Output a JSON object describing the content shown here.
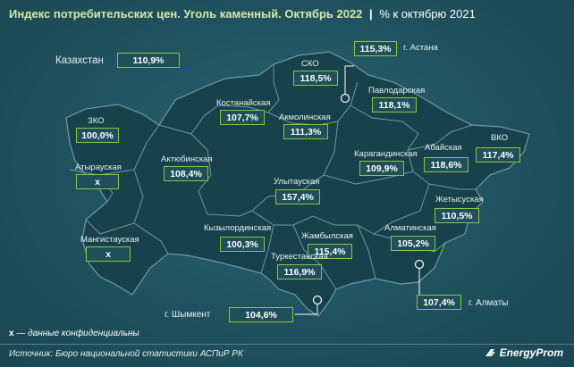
{
  "header": {
    "title": "Индекс потребительских цен. Уголь каменный. Октябрь 2022",
    "separator": "|",
    "unit": "% к октябрю 2021"
  },
  "national": {
    "label": "Казахстан",
    "value": "110,9%"
  },
  "regions": [
    {
      "id": "zko",
      "label": "ЗКО",
      "value": "100,0%"
    },
    {
      "id": "atyrau",
      "label": "Атырауская",
      "value": "х"
    },
    {
      "id": "mangystau",
      "label": "Мангистауская",
      "value": "х"
    },
    {
      "id": "aktobe",
      "label": "Актюбинская",
      "value": "108,4%"
    },
    {
      "id": "kostanay",
      "label": "Костанайская",
      "value": "107,7%"
    },
    {
      "id": "sko",
      "label": "СКО",
      "value": "118,5%"
    },
    {
      "id": "astana",
      "label": "г. Астана",
      "value": "115,3%"
    },
    {
      "id": "akmola",
      "label": "Акмолинская",
      "value": "111,3%"
    },
    {
      "id": "pavlodar",
      "label": "Павлодарская",
      "value": "118,1%"
    },
    {
      "id": "vko",
      "label": "ВКО",
      "value": "117,4%"
    },
    {
      "id": "abai",
      "label": "Абайская",
      "value": "118,6%"
    },
    {
      "id": "karaganda",
      "label": "Карагандинская",
      "value": "109,9%"
    },
    {
      "id": "ulytau",
      "label": "Улытауская",
      "value": "157,4%"
    },
    {
      "id": "zhetysu",
      "label": "Жетысуская",
      "value": "110,5%"
    },
    {
      "id": "kyzylorda",
      "label": "Кызылординская",
      "value": "100,3%"
    },
    {
      "id": "zhambyl",
      "label": "Жамбылская",
      "value": "115,4%"
    },
    {
      "id": "almaty_region",
      "label": "Алматинская",
      "value": "105,2%"
    },
    {
      "id": "turkestan",
      "label": "Туркестанская",
      "value": "116,9%"
    },
    {
      "id": "shymkent",
      "label": "г. Шымкент",
      "value": "104,6%"
    },
    {
      "id": "almaty_city",
      "label": "г. Алматы",
      "value": "107,4%"
    }
  ],
  "footnote": {
    "symbol": "х",
    "text": "— данные конфиденциальны"
  },
  "source": "Источник: Бюро национальной статистики АСПиР РК",
  "logo": {
    "text": "EnergyProm"
  },
  "colors": {
    "background": "#1f525e",
    "land": "#17414b",
    "border": "#6f9aa5",
    "value_box_border": "#8cc63f",
    "title": "#d6e8a6"
  }
}
